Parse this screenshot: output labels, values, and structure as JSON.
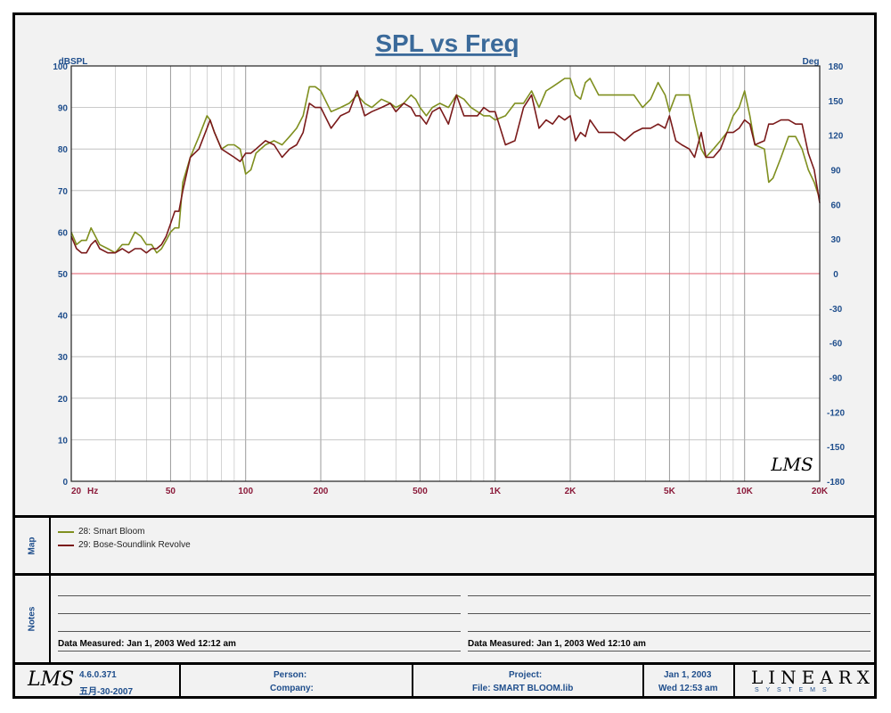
{
  "chart_data": {
    "type": "line",
    "title": "SPL vs Freq",
    "ylabel_left": "dBSPL",
    "ylabel_right": "Deg",
    "x_scale": "log",
    "xlim": [
      20,
      20000
    ],
    "ylim": [
      0,
      100
    ],
    "y2lim": [
      -180,
      180
    ],
    "x_ticks": [
      {
        "value": 20,
        "label": "20"
      },
      {
        "value": 50,
        "label": "50"
      },
      {
        "value": 100,
        "label": "100"
      },
      {
        "value": 200,
        "label": "200"
      },
      {
        "value": 500,
        "label": "500"
      },
      {
        "value": 1000,
        "label": "1K"
      },
      {
        "value": 2000,
        "label": "2K"
      },
      {
        "value": 5000,
        "label": "5K"
      },
      {
        "value": 10000,
        "label": "10K"
      },
      {
        "value": 20000,
        "label": "20K"
      }
    ],
    "x_unit": "Hz",
    "y_ticks": [
      0,
      10,
      20,
      30,
      40,
      50,
      60,
      70,
      80,
      90,
      100
    ],
    "y2_ticks": [
      -180,
      -150,
      -120,
      -90,
      -60,
      -30,
      0,
      30,
      60,
      90,
      120,
      150,
      180
    ],
    "grid": true,
    "reference_line": {
      "y": 50,
      "color": "#e05a6a"
    },
    "series": [
      {
        "name": "28: Smart Bloom",
        "color": "#7f8f1f",
        "points": [
          [
            20,
            60
          ],
          [
            21,
            57
          ],
          [
            22,
            58
          ],
          [
            23,
            58
          ],
          [
            24,
            61
          ],
          [
            25,
            59
          ],
          [
            26,
            57
          ],
          [
            28,
            56
          ],
          [
            30,
            55
          ],
          [
            32,
            57
          ],
          [
            34,
            57
          ],
          [
            36,
            60
          ],
          [
            38,
            59
          ],
          [
            40,
            57
          ],
          [
            42,
            57
          ],
          [
            44,
            55
          ],
          [
            46,
            56
          ],
          [
            48,
            58
          ],
          [
            50,
            60
          ],
          [
            52,
            61
          ],
          [
            54,
            61
          ],
          [
            56,
            72
          ],
          [
            60,
            78
          ],
          [
            65,
            83
          ],
          [
            70,
            88
          ],
          [
            72,
            87
          ],
          [
            75,
            84
          ],
          [
            80,
            80
          ],
          [
            85,
            81
          ],
          [
            90,
            81
          ],
          [
            95,
            80
          ],
          [
            100,
            74
          ],
          [
            105,
            75
          ],
          [
            110,
            79
          ],
          [
            120,
            81
          ],
          [
            130,
            82
          ],
          [
            140,
            81
          ],
          [
            150,
            83
          ],
          [
            160,
            85
          ],
          [
            170,
            88
          ],
          [
            180,
            95
          ],
          [
            190,
            95
          ],
          [
            200,
            94
          ],
          [
            220,
            89
          ],
          [
            240,
            90
          ],
          [
            260,
            91
          ],
          [
            280,
            93
          ],
          [
            300,
            91
          ],
          [
            320,
            90
          ],
          [
            350,
            92
          ],
          [
            380,
            91
          ],
          [
            400,
            90
          ],
          [
            430,
            91
          ],
          [
            460,
            93
          ],
          [
            480,
            92
          ],
          [
            500,
            90
          ],
          [
            530,
            88
          ],
          [
            560,
            90
          ],
          [
            600,
            91
          ],
          [
            650,
            90
          ],
          [
            700,
            93
          ],
          [
            750,
            92
          ],
          [
            800,
            90
          ],
          [
            850,
            89
          ],
          [
            900,
            88
          ],
          [
            950,
            88
          ],
          [
            1000,
            87
          ],
          [
            1100,
            88
          ],
          [
            1200,
            91
          ],
          [
            1300,
            91
          ],
          [
            1400,
            94
          ],
          [
            1500,
            90
          ],
          [
            1600,
            94
          ],
          [
            1700,
            95
          ],
          [
            1800,
            96
          ],
          [
            1900,
            97
          ],
          [
            2000,
            97
          ],
          [
            2100,
            93
          ],
          [
            2200,
            92
          ],
          [
            2300,
            96
          ],
          [
            2400,
            97
          ],
          [
            2600,
            93
          ],
          [
            2800,
            93
          ],
          [
            3000,
            93
          ],
          [
            3300,
            93
          ],
          [
            3600,
            93
          ],
          [
            3900,
            90
          ],
          [
            4200,
            92
          ],
          [
            4500,
            96
          ],
          [
            4800,
            93
          ],
          [
            5000,
            89
          ],
          [
            5300,
            93
          ],
          [
            5600,
            93
          ],
          [
            6000,
            93
          ],
          [
            6300,
            87
          ],
          [
            6700,
            80
          ],
          [
            7000,
            78
          ],
          [
            7500,
            80
          ],
          [
            8000,
            82
          ],
          [
            8500,
            84
          ],
          [
            9000,
            88
          ],
          [
            9500,
            90
          ],
          [
            10000,
            94
          ],
          [
            10500,
            88
          ],
          [
            11000,
            81
          ],
          [
            12000,
            80
          ],
          [
            12500,
            72
          ],
          [
            13000,
            73
          ],
          [
            14000,
            78
          ],
          [
            15000,
            83
          ],
          [
            16000,
            83
          ],
          [
            17000,
            80
          ],
          [
            18000,
            75
          ],
          [
            19000,
            72
          ],
          [
            20000,
            68
          ]
        ]
      },
      {
        "name": "29: Bose-Soundlink Revolve",
        "color": "#7a1a1a",
        "points": [
          [
            20,
            59
          ],
          [
            21,
            56
          ],
          [
            22,
            55
          ],
          [
            23,
            55
          ],
          [
            24,
            57
          ],
          [
            25,
            58
          ],
          [
            26,
            56
          ],
          [
            28,
            55
          ],
          [
            30,
            55
          ],
          [
            32,
            56
          ],
          [
            34,
            55
          ],
          [
            36,
            56
          ],
          [
            38,
            56
          ],
          [
            40,
            55
          ],
          [
            42,
            56
          ],
          [
            44,
            56
          ],
          [
            46,
            57
          ],
          [
            48,
            59
          ],
          [
            50,
            62
          ],
          [
            52,
            65
          ],
          [
            54,
            65
          ],
          [
            56,
            70
          ],
          [
            60,
            78
          ],
          [
            65,
            80
          ],
          [
            70,
            85
          ],
          [
            72,
            87
          ],
          [
            75,
            84
          ],
          [
            80,
            80
          ],
          [
            85,
            79
          ],
          [
            90,
            78
          ],
          [
            95,
            77
          ],
          [
            100,
            79
          ],
          [
            105,
            79
          ],
          [
            110,
            80
          ],
          [
            120,
            82
          ],
          [
            130,
            81
          ],
          [
            140,
            78
          ],
          [
            150,
            80
          ],
          [
            160,
            81
          ],
          [
            170,
            84
          ],
          [
            180,
            91
          ],
          [
            190,
            90
          ],
          [
            200,
            90
          ],
          [
            220,
            85
          ],
          [
            240,
            88
          ],
          [
            260,
            89
          ],
          [
            280,
            94
          ],
          [
            300,
            88
          ],
          [
            320,
            89
          ],
          [
            350,
            90
          ],
          [
            380,
            91
          ],
          [
            400,
            89
          ],
          [
            430,
            91
          ],
          [
            460,
            90
          ],
          [
            480,
            88
          ],
          [
            500,
            88
          ],
          [
            530,
            86
          ],
          [
            560,
            89
          ],
          [
            600,
            90
          ],
          [
            650,
            86
          ],
          [
            700,
            93
          ],
          [
            750,
            88
          ],
          [
            800,
            88
          ],
          [
            850,
            88
          ],
          [
            900,
            90
          ],
          [
            950,
            89
          ],
          [
            1000,
            89
          ],
          [
            1100,
            81
          ],
          [
            1200,
            82
          ],
          [
            1300,
            90
          ],
          [
            1400,
            93
          ],
          [
            1500,
            85
          ],
          [
            1600,
            87
          ],
          [
            1700,
            86
          ],
          [
            1800,
            88
          ],
          [
            1900,
            87
          ],
          [
            2000,
            88
          ],
          [
            2100,
            82
          ],
          [
            2200,
            84
          ],
          [
            2300,
            83
          ],
          [
            2400,
            87
          ],
          [
            2600,
            84
          ],
          [
            2800,
            84
          ],
          [
            3000,
            84
          ],
          [
            3300,
            82
          ],
          [
            3600,
            84
          ],
          [
            3900,
            85
          ],
          [
            4200,
            85
          ],
          [
            4500,
            86
          ],
          [
            4800,
            85
          ],
          [
            5000,
            88
          ],
          [
            5300,
            82
          ],
          [
            5600,
            81
          ],
          [
            6000,
            80
          ],
          [
            6300,
            78
          ],
          [
            6700,
            84
          ],
          [
            7000,
            78
          ],
          [
            7500,
            78
          ],
          [
            8000,
            80
          ],
          [
            8500,
            84
          ],
          [
            9000,
            84
          ],
          [
            9500,
            85
          ],
          [
            10000,
            87
          ],
          [
            10500,
            86
          ],
          [
            11000,
            81
          ],
          [
            12000,
            82
          ],
          [
            12500,
            86
          ],
          [
            13000,
            86
          ],
          [
            14000,
            87
          ],
          [
            15000,
            87
          ],
          [
            16000,
            86
          ],
          [
            17000,
            86
          ],
          [
            18000,
            79
          ],
          [
            19000,
            75
          ],
          [
            20000,
            67
          ]
        ]
      }
    ]
  },
  "map": {
    "label": "Map",
    "legend": [
      "28: Smart Bloom",
      "29: Bose-Soundlink Revolve"
    ]
  },
  "notes": {
    "label": "Notes",
    "measured_left": "Data Measured: Jan  1, 2003  Wed 12:12 am",
    "measured_right": "Data Measured: Jan  1, 2003  Wed 12:10 am"
  },
  "footer": {
    "logo": "LMS",
    "version": "4.6.0.371",
    "build_date": "五月-30-2007",
    "person_label": "Person:",
    "company_label": "Company:",
    "project_label": "Project:",
    "file_label": "File: SMART BLOOM.lib",
    "date": "Jan  1, 2003",
    "time": "Wed 12:53 am",
    "brand": "LINEARX",
    "brand_sub": "S Y S T E M S"
  },
  "watermark": "LMS",
  "colors": {
    "axis_text": "#1f4e8c",
    "x_tick_text": "#8b1a3a",
    "grid": "#b8b8b8"
  }
}
